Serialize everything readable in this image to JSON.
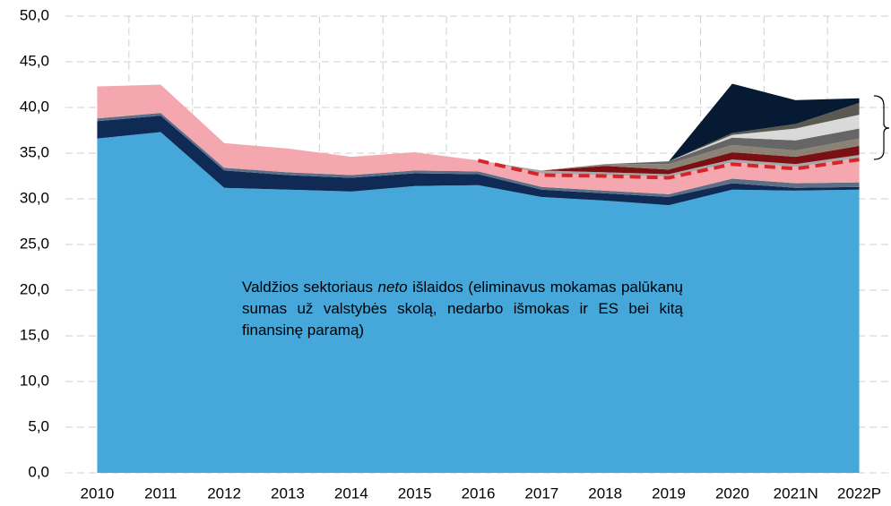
{
  "chart_data": {
    "type": "stacked_area",
    "categories": [
      "2010",
      "2011",
      "2012",
      "2013",
      "2014",
      "2015",
      "2016",
      "2017",
      "2018",
      "2019",
      "2020",
      "2021N",
      "2022P"
    ],
    "series": [
      {
        "color": "#45a7da",
        "values": [
          36.6,
          37.3,
          31.2,
          31.0,
          30.8,
          31.4,
          31.5,
          30.2,
          29.8,
          29.3,
          31.0,
          30.9,
          31.0
        ]
      },
      {
        "color": "#0e2a55",
        "values": [
          1.9,
          1.8,
          1.9,
          1.6,
          1.5,
          1.4,
          1.2,
          0.8,
          0.8,
          0.9,
          0.7,
          0.3,
          0.3
        ]
      },
      {
        "color": "#5d6f87",
        "values": [
          0.3,
          0.3,
          0.3,
          0.3,
          0.3,
          0.3,
          0.3,
          0.3,
          0.3,
          0.3,
          0.5,
          0.5,
          0.5
        ]
      },
      {
        "color": "#f4a7ae",
        "values": [
          3.5,
          3.1,
          2.7,
          2.6,
          2.0,
          2.0,
          1.2,
          1.5,
          1.7,
          1.9,
          1.8,
          1.8,
          2.7
        ]
      },
      {
        "color": "#a8a8a8",
        "values": [
          0,
          0,
          0,
          0,
          0,
          0,
          0,
          0.3,
          0.3,
          0.3,
          0.3,
          0.3,
          0.3
        ]
      },
      {
        "color": "#7b1014",
        "values": [
          0,
          0,
          0,
          0,
          0,
          0,
          0,
          0,
          0.7,
          0.5,
          0.8,
          0.8,
          1.0
        ]
      },
      {
        "color": "#8a8275",
        "values": [
          0,
          0,
          0,
          0,
          0,
          0,
          0,
          0,
          0.2,
          0.6,
          0.8,
          0.7,
          0.8
        ]
      },
      {
        "color": "#666666",
        "values": [
          0,
          0,
          0,
          0,
          0,
          0,
          0,
          0,
          0,
          0.3,
          0.8,
          1.1,
          1.1
        ]
      },
      {
        "color": "#d9d9d9",
        "values": [
          0,
          0,
          0,
          0,
          0,
          0,
          0,
          0,
          0,
          0,
          0.3,
          1.3,
          1.5
        ]
      },
      {
        "color": "#5a5850",
        "values": [
          0,
          0,
          0,
          0,
          0,
          0,
          0,
          0,
          0,
          0,
          0.2,
          0.5,
          1.3
        ]
      },
      {
        "color": "#061a33",
        "values": [
          0,
          0,
          0,
          0,
          0,
          0,
          0,
          0,
          0,
          0,
          5.4,
          2.6,
          0.5
        ]
      }
    ],
    "dashed_line": {
      "color": "#d5252b",
      "values": [
        null,
        null,
        null,
        null,
        null,
        null,
        34.2,
        32.6,
        32.5,
        32.3,
        33.8,
        33.3,
        34.3
      ]
    },
    "annotation": [
      "Valdžios sektoriaus",
      "neto",
      "išlaidos (eliminavus mokamas palūkanų sumas už valstybės skolą, nedarbo išmokas ir ES bei kitą finansinę paramą)"
    ],
    "ylim": [
      0,
      50
    ],
    "yticks": [
      {
        "value": 0,
        "label": "0,0"
      },
      {
        "value": 5,
        "label": "5,0"
      },
      {
        "value": 10,
        "label": "10,0"
      },
      {
        "value": 15,
        "label": "15,0"
      },
      {
        "value": 20,
        "label": "20,0"
      },
      {
        "value": 25,
        "label": "25,0"
      },
      {
        "value": 30,
        "label": "30,0"
      },
      {
        "value": 35,
        "label": "35,0"
      },
      {
        "value": 40,
        "label": "40,0"
      },
      {
        "value": 45,
        "label": "45,0"
      },
      {
        "value": 50,
        "label": "50,0"
      }
    ],
    "grid": true
  }
}
